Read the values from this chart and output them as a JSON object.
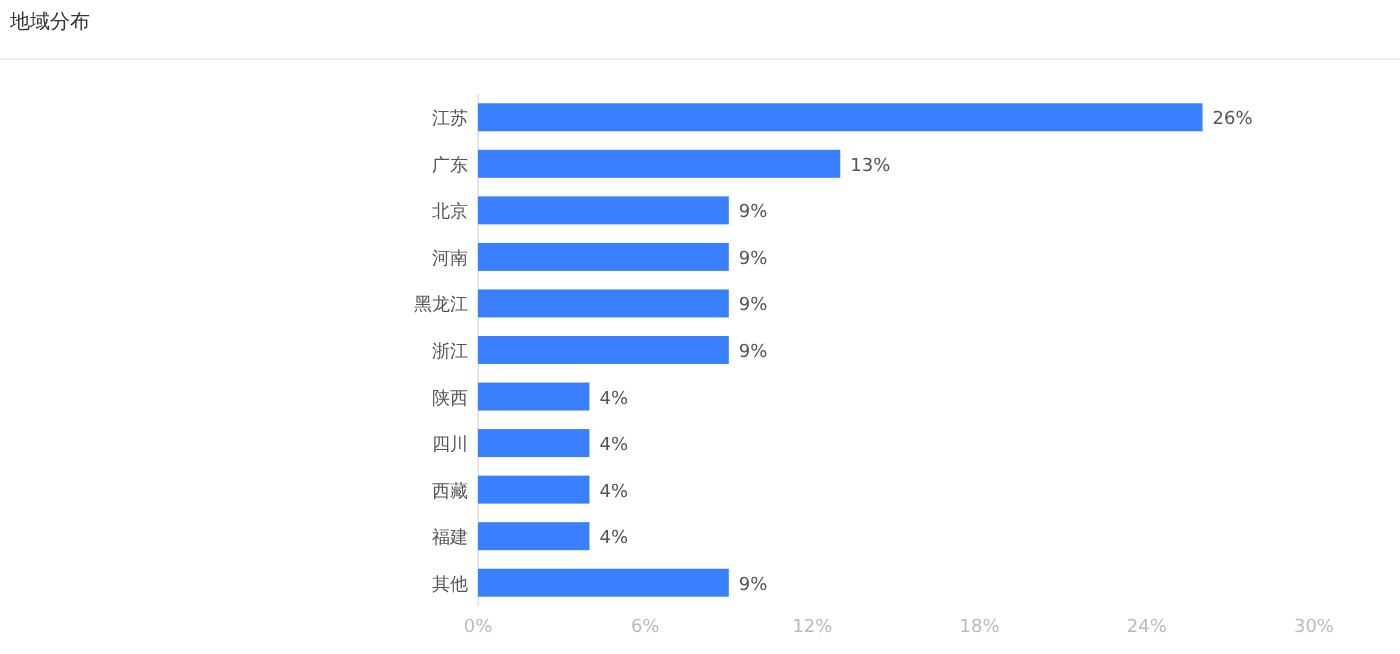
{
  "chart_data": {
    "type": "bar",
    "orientation": "horizontal",
    "title": "地域分布",
    "categories": [
      "江苏",
      "广东",
      "北京",
      "河南",
      "黑龙江",
      "浙江",
      "陕西",
      "四川",
      "西藏",
      "福建",
      "其他"
    ],
    "values": [
      26,
      13,
      9,
      9,
      9,
      9,
      4,
      4,
      4,
      4,
      9
    ],
    "value_labels": [
      "26%",
      "13%",
      "9%",
      "9%",
      "9%",
      "9%",
      "4%",
      "4%",
      "4%",
      "4%",
      "9%"
    ],
    "color": "#3a80fe",
    "xlim": [
      0,
      30
    ],
    "xticks": [
      {
        "value": 0,
        "label": "0%"
      },
      {
        "value": 6,
        "label": "6%"
      },
      {
        "value": 12,
        "label": "12%"
      },
      {
        "value": 18,
        "label": "18%"
      },
      {
        "value": 24,
        "label": "24%"
      },
      {
        "value": 30,
        "label": "30%"
      }
    ],
    "grid": false
  }
}
